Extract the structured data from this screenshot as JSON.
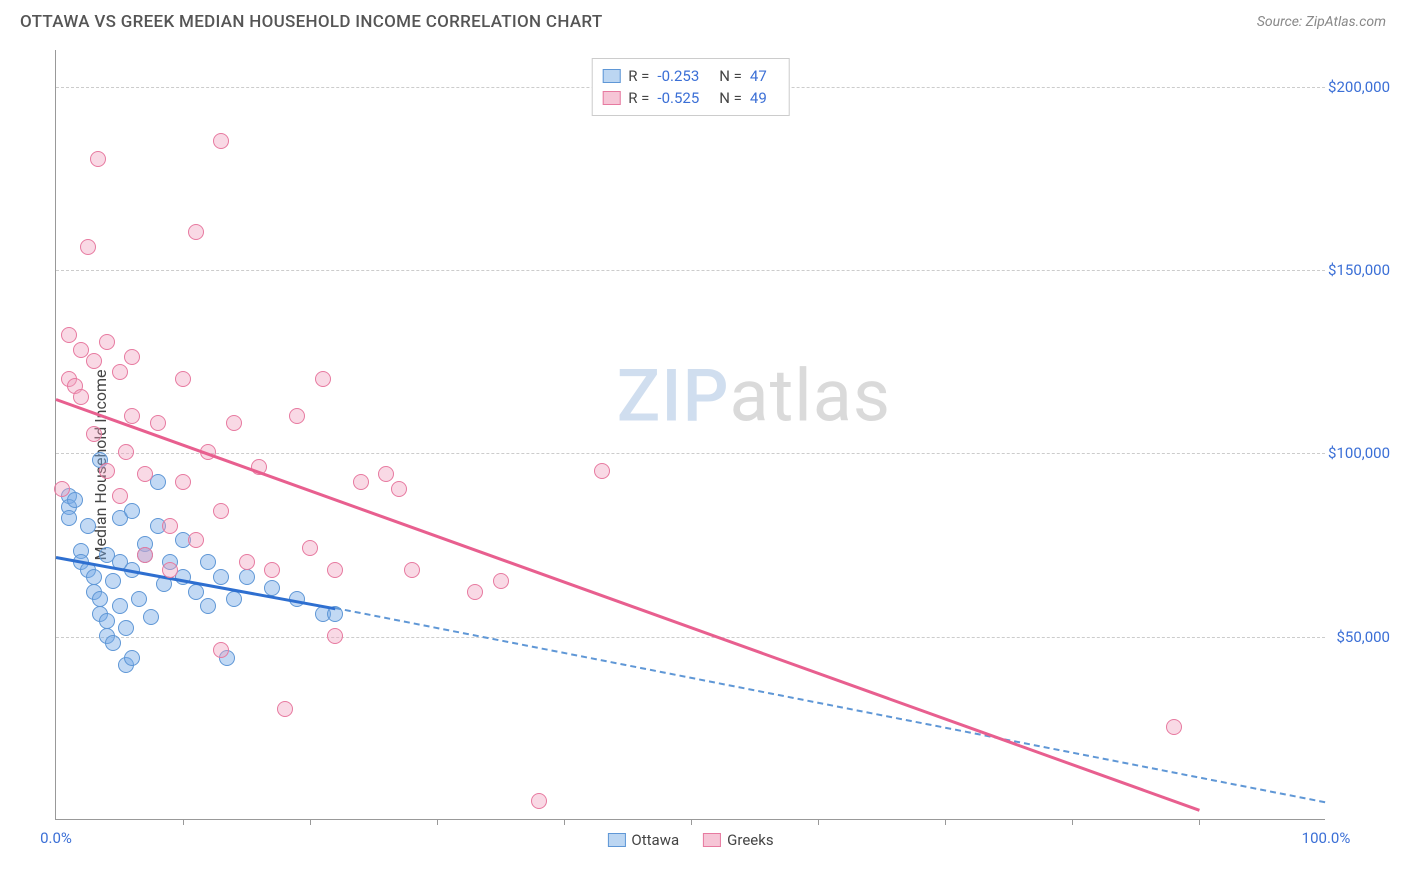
{
  "header": {
    "title": "OTTAWA VS GREEK MEDIAN HOUSEHOLD INCOME CORRELATION CHART",
    "source": "Source: ZipAtlas.com"
  },
  "watermark": {
    "part1": "ZIP",
    "part2": "atlas"
  },
  "chart": {
    "type": "scatter",
    "ylabel": "Median Household Income",
    "xlim": [
      0,
      100
    ],
    "ylim": [
      0,
      210000
    ],
    "background_color": "#ffffff",
    "grid_color": "#cccccc",
    "axis_color": "#999999",
    "tick_label_color": "#3b6fd6",
    "label_fontsize": 16,
    "tick_fontsize": 15,
    "yticks": [
      {
        "value": 50000,
        "label": "$50,000"
      },
      {
        "value": 100000,
        "label": "$100,000"
      },
      {
        "value": 150000,
        "label": "$150,000"
      },
      {
        "value": 200000,
        "label": "$200,000"
      }
    ],
    "xticks_minor": [
      10,
      20,
      30,
      40,
      50,
      60,
      70,
      80,
      90
    ],
    "xaxis_labels": [
      {
        "value": 0,
        "label": "0.0%"
      },
      {
        "value": 100,
        "label": "100.0%"
      }
    ],
    "series": [
      {
        "name": "Ottawa",
        "color_fill": "rgba(120,170,230,0.45)",
        "color_stroke": "#5f97d6",
        "swatch_fill": "#bcd6f2",
        "swatch_border": "#5f97d6",
        "marker_radius": 8,
        "stats": {
          "R": "-0.253",
          "N": "47"
        },
        "regression": {
          "x1": 0,
          "y1": 72000,
          "x2": 22,
          "y2": 58000,
          "line_color": "#2e6fd0",
          "line_width": 3
        },
        "dashed_extension": {
          "x1": 22,
          "y1": 58000,
          "x2": 100,
          "y2": 5000,
          "color": "#5f97d6"
        },
        "points": [
          {
            "x": 1,
            "y": 88000
          },
          {
            "x": 1,
            "y": 85000
          },
          {
            "x": 1,
            "y": 82000
          },
          {
            "x": 1.5,
            "y": 87000
          },
          {
            "x": 2,
            "y": 73000
          },
          {
            "x": 2,
            "y": 70000
          },
          {
            "x": 2.5,
            "y": 80000
          },
          {
            "x": 2.5,
            "y": 68000
          },
          {
            "x": 3,
            "y": 66000
          },
          {
            "x": 3,
            "y": 62000
          },
          {
            "x": 3.5,
            "y": 98000
          },
          {
            "x": 3.5,
            "y": 60000
          },
          {
            "x": 3.5,
            "y": 56000
          },
          {
            "x": 4,
            "y": 72000
          },
          {
            "x": 4,
            "y": 54000
          },
          {
            "x": 4,
            "y": 50000
          },
          {
            "x": 4.5,
            "y": 65000
          },
          {
            "x": 4.5,
            "y": 48000
          },
          {
            "x": 5,
            "y": 82000
          },
          {
            "x": 5,
            "y": 70000
          },
          {
            "x": 5,
            "y": 58000
          },
          {
            "x": 5.5,
            "y": 52000
          },
          {
            "x": 5.5,
            "y": 42000
          },
          {
            "x": 6,
            "y": 84000
          },
          {
            "x": 6,
            "y": 68000
          },
          {
            "x": 6,
            "y": 44000
          },
          {
            "x": 6.5,
            "y": 60000
          },
          {
            "x": 7,
            "y": 75000
          },
          {
            "x": 7,
            "y": 72000
          },
          {
            "x": 7.5,
            "y": 55000
          },
          {
            "x": 8,
            "y": 80000
          },
          {
            "x": 8,
            "y": 92000
          },
          {
            "x": 8.5,
            "y": 64000
          },
          {
            "x": 9,
            "y": 70000
          },
          {
            "x": 10,
            "y": 76000
          },
          {
            "x": 10,
            "y": 66000
          },
          {
            "x": 11,
            "y": 62000
          },
          {
            "x": 12,
            "y": 70000
          },
          {
            "x": 12,
            "y": 58000
          },
          {
            "x": 13,
            "y": 66000
          },
          {
            "x": 13.5,
            "y": 44000
          },
          {
            "x": 14,
            "y": 60000
          },
          {
            "x": 15,
            "y": 66000
          },
          {
            "x": 17,
            "y": 63000
          },
          {
            "x": 19,
            "y": 60000
          },
          {
            "x": 21,
            "y": 56000
          },
          {
            "x": 22,
            "y": 56000
          }
        ]
      },
      {
        "name": "Greeks",
        "color_fill": "rgba(240,160,190,0.40)",
        "color_stroke": "#e77aa0",
        "swatch_fill": "#f6c5d6",
        "swatch_border": "#e77aa0",
        "marker_radius": 8,
        "stats": {
          "R": "-0.525",
          "N": "49"
        },
        "regression": {
          "x1": 0,
          "y1": 115000,
          "x2": 90,
          "y2": 3000,
          "line_color": "#e85f8f",
          "line_width": 3
        },
        "points": [
          {
            "x": 0.5,
            "y": 90000
          },
          {
            "x": 1,
            "y": 132000
          },
          {
            "x": 1,
            "y": 120000
          },
          {
            "x": 1.5,
            "y": 118000
          },
          {
            "x": 2,
            "y": 128000
          },
          {
            "x": 2,
            "y": 115000
          },
          {
            "x": 2.5,
            "y": 156000
          },
          {
            "x": 3,
            "y": 125000
          },
          {
            "x": 3,
            "y": 105000
          },
          {
            "x": 3.3,
            "y": 180000
          },
          {
            "x": 4,
            "y": 130000
          },
          {
            "x": 4,
            "y": 95000
          },
          {
            "x": 5,
            "y": 122000
          },
          {
            "x": 5,
            "y": 88000
          },
          {
            "x": 5.5,
            "y": 100000
          },
          {
            "x": 6,
            "y": 126000
          },
          {
            "x": 6,
            "y": 110000
          },
          {
            "x": 7,
            "y": 94000
          },
          {
            "x": 7,
            "y": 72000
          },
          {
            "x": 8,
            "y": 108000
          },
          {
            "x": 9,
            "y": 80000
          },
          {
            "x": 9,
            "y": 68000
          },
          {
            "x": 10,
            "y": 120000
          },
          {
            "x": 10,
            "y": 92000
          },
          {
            "x": 11,
            "y": 160000
          },
          {
            "x": 11,
            "y": 76000
          },
          {
            "x": 12,
            "y": 100000
          },
          {
            "x": 13,
            "y": 185000
          },
          {
            "x": 13,
            "y": 84000
          },
          {
            "x": 13,
            "y": 46000
          },
          {
            "x": 14,
            "y": 108000
          },
          {
            "x": 15,
            "y": 70000
          },
          {
            "x": 16,
            "y": 96000
          },
          {
            "x": 17,
            "y": 68000
          },
          {
            "x": 18,
            "y": 30000
          },
          {
            "x": 19,
            "y": 110000
          },
          {
            "x": 20,
            "y": 74000
          },
          {
            "x": 21,
            "y": 120000
          },
          {
            "x": 22,
            "y": 68000
          },
          {
            "x": 22,
            "y": 50000
          },
          {
            "x": 24,
            "y": 92000
          },
          {
            "x": 26,
            "y": 94000
          },
          {
            "x": 27,
            "y": 90000
          },
          {
            "x": 28,
            "y": 68000
          },
          {
            "x": 33,
            "y": 62000
          },
          {
            "x": 35,
            "y": 65000
          },
          {
            "x": 38,
            "y": 5000
          },
          {
            "x": 43,
            "y": 95000
          },
          {
            "x": 88,
            "y": 25000
          }
        ]
      }
    ],
    "legend_top_labels": {
      "R": "R =",
      "N": "N ="
    },
    "legend_bottom": [
      {
        "series_idx": 0,
        "label": "Ottawa"
      },
      {
        "series_idx": 1,
        "label": "Greeks"
      }
    ]
  }
}
